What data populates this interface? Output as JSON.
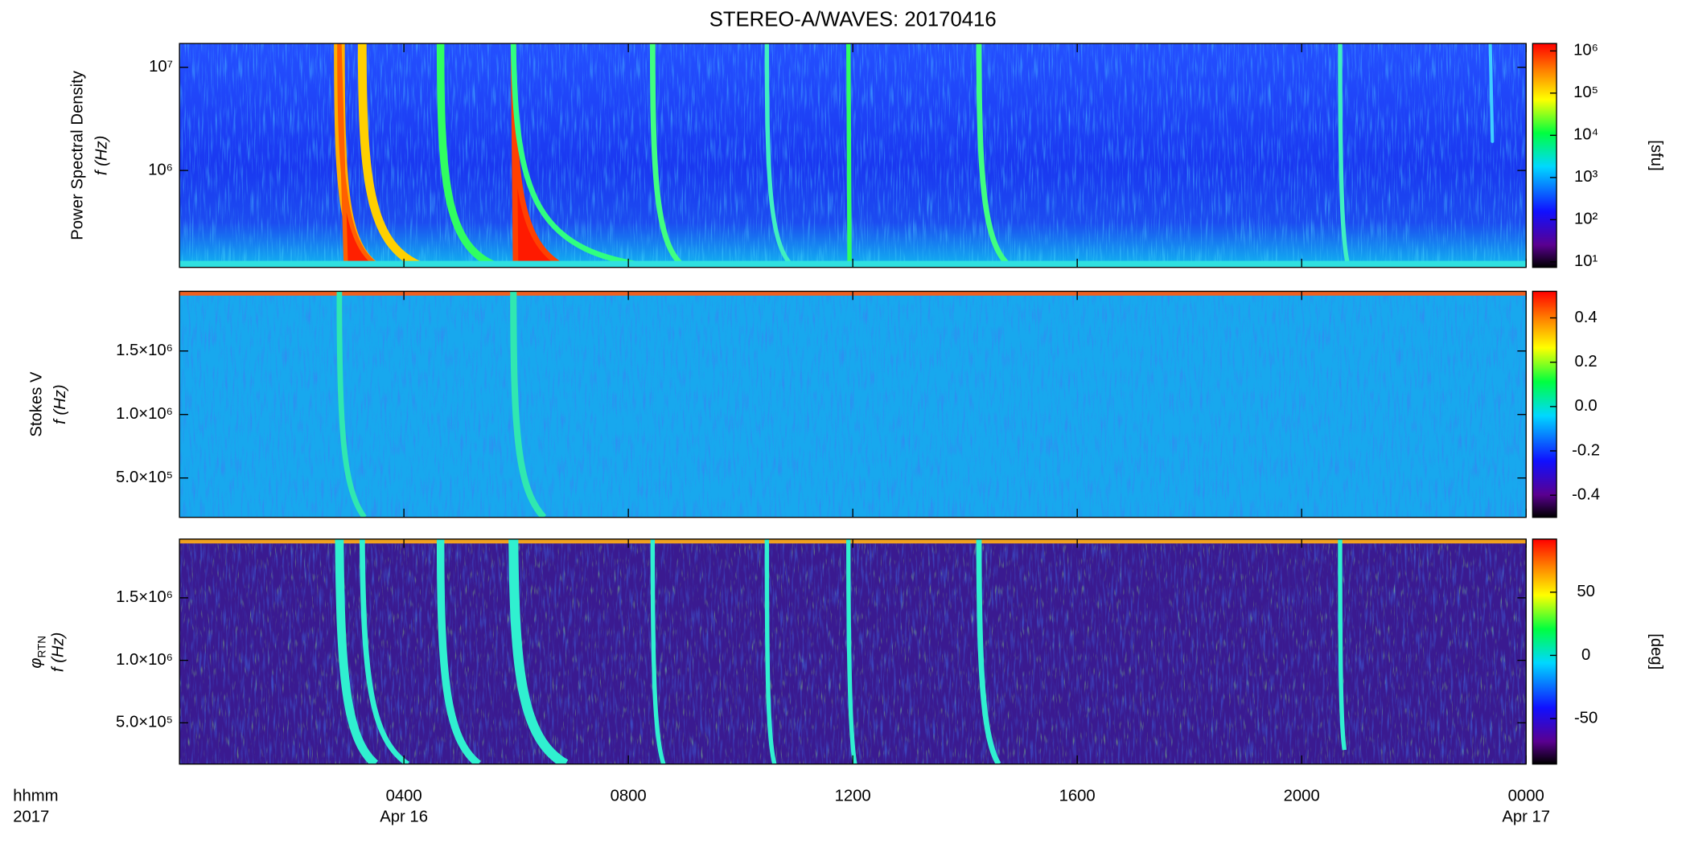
{
  "chart_data": [
    {
      "type": "heatmap",
      "title": "STEREO-A/WAVES: 20170416",
      "y_label_lines": [
        "Power Spectral Density",
        "f (Hz)"
      ],
      "ylog": true,
      "ylim": [
        115000,
        17000000
      ],
      "yticks": [
        {
          "value": 1000000,
          "label": "10⁶"
        },
        {
          "value": 10000000,
          "label": "10⁷"
        }
      ],
      "colorbar": {
        "log": true,
        "lim": [
          7.4,
          1500000
        ],
        "label": "[sfu]",
        "ticks": [
          {
            "value": 10,
            "label": "10¹"
          },
          {
            "value": 100,
            "label": "10²"
          },
          {
            "value": 1000,
            "label": "10³"
          },
          {
            "value": 10000,
            "label": "10⁴"
          },
          {
            "value": 100000,
            "label": "10⁵"
          },
          {
            "value": 1000000,
            "label": "10⁶"
          }
        ]
      }
    },
    {
      "type": "heatmap",
      "y_label_lines": [
        "Stokes V",
        "f (Hz)"
      ],
      "ylog": false,
      "ylim": [
        190000,
        1970000
      ],
      "yticks": [
        {
          "value": 500000,
          "label": "5.0×10⁵"
        },
        {
          "value": 1000000,
          "label": "1.0×10⁶"
        },
        {
          "value": 1500000,
          "label": "1.5×10⁶"
        }
      ],
      "colorbar": {
        "log": false,
        "lim": [
          -0.5,
          0.52
        ],
        "ticks": [
          -0.4,
          -0.2,
          {
            "value": 0,
            "label": "0.0"
          },
          0.2,
          0.4
        ]
      }
    },
    {
      "type": "heatmap",
      "y_label_symbol": "φ",
      "y_label_subscript": "RTN",
      "y_label_unit": "f (Hz)",
      "ylog": false,
      "ylim": [
        170000,
        1970000
      ],
      "yticks": [
        {
          "value": 500000,
          "label": "5.0×10⁵"
        },
        {
          "value": 1000000,
          "label": "1.0×10⁶"
        },
        {
          "value": 1500000,
          "label": "1.5×10⁶"
        }
      ],
      "colorbar": {
        "log": false,
        "lim": [
          -86,
          92
        ],
        "label": "[deg]",
        "ticks": [
          -50,
          0,
          50
        ]
      },
      "x_label_lines": [
        "hhmm",
        "2017"
      ],
      "xlim": [
        "2017-04-16T00:00",
        "2017-04-17T00:00"
      ],
      "xticks": [
        {
          "value": "2017-04-16T04:00",
          "label": "0400",
          "date_label": "Apr 16"
        },
        {
          "value": "2017-04-16T08:00",
          "label": "0800"
        },
        {
          "value": "2017-04-16T12:00",
          "label": "1200"
        },
        {
          "value": "2017-04-16T16:00",
          "label": "1600"
        },
        {
          "value": "2017-04-16T20:00",
          "label": "2000"
        },
        {
          "value": "2017-04-17T00:00",
          "label": "0000",
          "date_label": "Apr 17"
        }
      ]
    }
  ]
}
